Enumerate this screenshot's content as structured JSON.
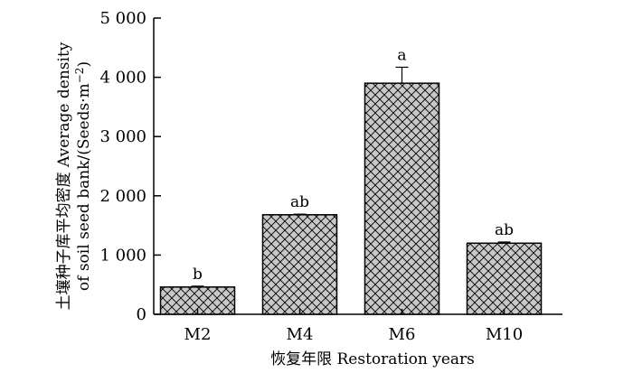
{
  "chart_data": {
    "type": "bar",
    "categories": [
      "M2",
      "M4",
      "M6",
      "M10"
    ],
    "values": [
      460,
      1680,
      3900,
      1200
    ],
    "error_plus": [
      15,
      10,
      270,
      20
    ],
    "significance": [
      "b",
      "ab",
      "a",
      "ab"
    ],
    "xlabel": "恢复年限 Restoration years",
    "ylabel_line1": "土壤种子库平均密度 Average density",
    "ylabel_line2_pre": "of soil seed bank/(Seeds",
    "ylabel_line2_dot": "·",
    "ylabel_line2_m": "m",
    "ylabel_line2_exp": "−2",
    "ylabel_line2_post": ")",
    "ylim": [
      0,
      5000
    ],
    "yticks": [
      0,
      1000,
      2000,
      3000,
      4000,
      5000
    ],
    "ytick_labels": [
      "0",
      "1 000",
      "2 000",
      "3 000",
      "4 000",
      "5 000"
    ],
    "bar_pattern": "cross-hatch",
    "bar_fill": "#c8c8c8",
    "bar_stroke": "#000000",
    "grid": false
  }
}
